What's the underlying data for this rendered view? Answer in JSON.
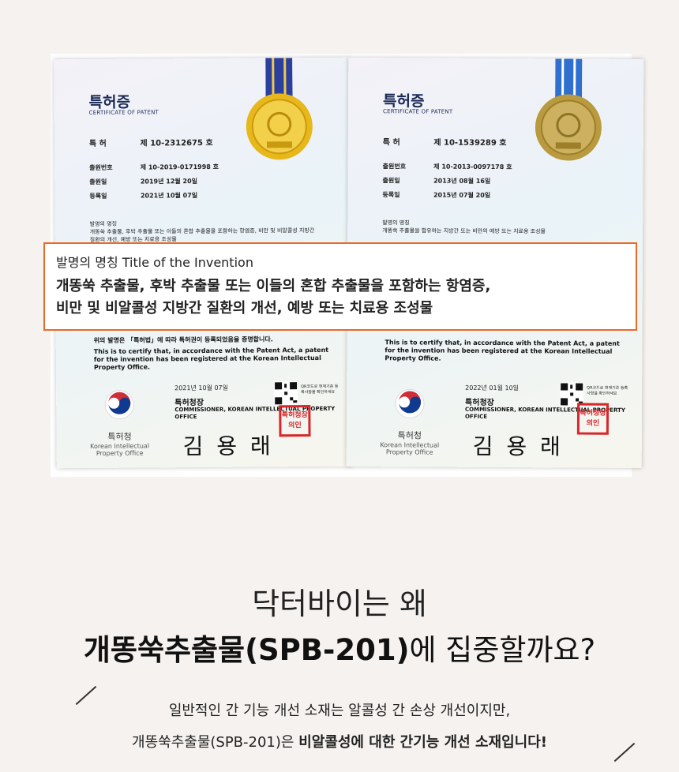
{
  "certificates": [
    {
      "title": "특허증",
      "subtitle": "CERTIFICATE OF PATENT",
      "patent_label": "특 허",
      "patent_no": "제 10-2312675 호",
      "application_label": "출원번호",
      "application_no": "제 10-2019-0171998 호",
      "filing_label": "출원일",
      "filing_date": "2019년 12월 20일",
      "registration_label": "등록일",
      "registration_date": "2021년 10월 07일",
      "invention_label": "발명의 명칭",
      "invention_text": "개똥쑥 추출물, 후박 추출물 또는 이들의 혼합 추출물을 포함하는 항염증, 비만 및 비알콜성 지방간 질환의 개선, 예방 또는 치료용 조성물",
      "certify_ko": "위의 발명은 「특허법」에 따라 특허권이 등록되었음을 증명합니다.",
      "certify_en": "This is to certify that, in accordance with the Patent Act, a patent for the invention has been registered at the Korean Intellectual Property Office.",
      "issue_date": "2021년 10월 07일",
      "qr_text": "QR코드로 현재기준 등록사항을 확인하세요",
      "commissioner_ko": "특허청장",
      "commissioner_en": "COMMISSIONER, KOREAN INTELLECTUAL PROPERTY OFFICE",
      "signature": "김 용 래",
      "office_ko": "특허청",
      "office_en": "Korean Intellectual Property Office",
      "stamp": "특허청장의인",
      "ribbon_color": "#2a3f9e",
      "medal_color": "#e2b81d"
    },
    {
      "title": "특허증",
      "subtitle": "CERTIFICATE OF PATENT",
      "patent_label": "특 허",
      "patent_no": "제 10-1539289 호",
      "application_label": "출원번호",
      "application_no": "제 10-2013-0097178 호",
      "filing_label": "출원일",
      "filing_date": "2013년 08월 16일",
      "registration_label": "등록일",
      "registration_date": "2015년 07월 20일",
      "invention_label": "발명의 명칭",
      "invention_text": "개똥쑥 추출물을 함유하는 지방간 또는 비만의 예방 또는 치료용 조성물",
      "certify_ko": "",
      "certify_en": "This is to certify that, in accordance with the Patent Act, a patent for the invention has been registered at the Korean Intellectual Property Office.",
      "issue_date": "2022년 01월 10일",
      "qr_text": "QR코드로 현재기준 등록사항을 확인하세요",
      "commissioner_ko": "특허청장",
      "commissioner_en": "COMMISSIONER, KOREAN INTELLECTUAL PROPERTY OFFICE",
      "signature": "김 용 래",
      "office_ko": "특허청",
      "office_en": "Korean Intellectual Property Office",
      "stamp": "특허청장의인",
      "ribbon_color": "#2f6fd0",
      "medal_color": "#b99a3e"
    }
  ],
  "callout": {
    "label": "발명의 명칭 Title of the Invention",
    "line1": "개똥쑥 추출물, 후박 추출물 또는 이들의 혼합 추출물을 포함하는 항염증,",
    "line2": "비만 및 비알콜성 지방간 질환의 개선, 예방 또는 치료용 조성물",
    "border_color": "#e86a2a"
  },
  "heading": {
    "line1": "닥터바이는 왜",
    "line2_bold": "개똥쑥추출물(SPB-201)",
    "line2_rest": "에 집중할까요?"
  },
  "body": {
    "line1": "일반적인 간 기능 개선 소재는 알콜성 간 손상 개선이지만,",
    "line2_plain": "개똥쑥추출물(SPB-201)은 ",
    "line2_bold": "비알콜성에 대한 간기능 개선 소재입니다!"
  }
}
